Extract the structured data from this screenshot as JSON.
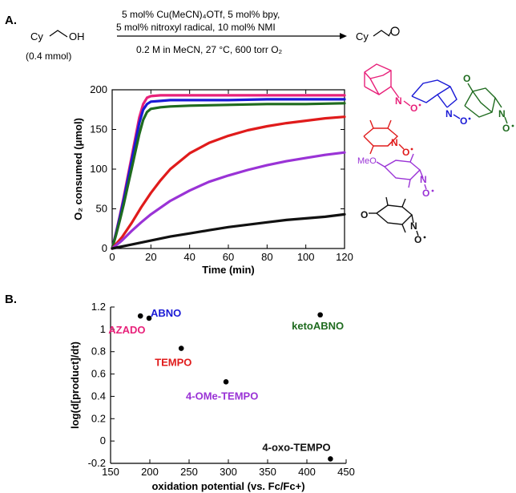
{
  "panel_a": {
    "label": "A.",
    "reactant": "Cy",
    "reactant_group": "OH",
    "reactant_amount": "(0.4 mmol)",
    "conditions_line1": "5 mol% Cu(MeCN)₄OTf, 5 mol% bpy,",
    "conditions_line2": "5 mol% nitroxyl radical, 10 mol% NMI",
    "conditions_line3": "0.2 M in MeCN, 27 °C, 600 torr O₂",
    "product": "Cy",
    "structure_labels": {
      "n": "N",
      "o": "O",
      "meo": "MeO",
      "keto_o": "O",
      "oxo_o": "O"
    }
  },
  "panel_b": {
    "label": "B."
  },
  "colors": {
    "AZADO": "#e8217a",
    "ABNO": "#1a1ad6",
    "ketoABNO": "#1f6b1f",
    "TEMPO": "#e01b1b",
    "4-OMe-TEMPO": "#9a33d6",
    "4-oxo-TEMPO": "#111111"
  },
  "chart_data": [
    {
      "type": "line",
      "xlabel": "Time (min)",
      "ylabel": "O₂ consumed (μmol)",
      "xlim": [
        0,
        120
      ],
      "ylim": [
        0,
        200
      ],
      "xticks": [
        0,
        20,
        40,
        60,
        80,
        100,
        120
      ],
      "yticks": [
        0,
        50,
        100,
        150,
        200
      ],
      "series": [
        {
          "key": "AZADO",
          "x": [
            0,
            2,
            4,
            6,
            8,
            10,
            12,
            14,
            16,
            18,
            20,
            25,
            30,
            40,
            60,
            80,
            100,
            120
          ],
          "values": [
            0,
            20,
            42,
            65,
            90,
            115,
            140,
            165,
            182,
            190,
            192,
            193,
            193,
            193,
            193,
            193,
            193,
            193
          ]
        },
        {
          "key": "ABNO",
          "x": [
            0,
            2,
            4,
            6,
            8,
            10,
            12,
            14,
            16,
            18,
            20,
            25,
            30,
            40,
            60,
            80,
            100,
            120
          ],
          "values": [
            0,
            19,
            40,
            62,
            86,
            110,
            134,
            158,
            175,
            182,
            185,
            186,
            187,
            187,
            187,
            188,
            188,
            188
          ]
        },
        {
          "key": "ketoABNO",
          "x": [
            0,
            2,
            4,
            6,
            8,
            10,
            12,
            14,
            16,
            18,
            20,
            25,
            30,
            40,
            60,
            80,
            100,
            120
          ],
          "values": [
            0,
            17,
            36,
            56,
            78,
            100,
            122,
            144,
            162,
            172,
            176,
            178,
            179,
            180,
            181,
            182,
            182,
            183
          ]
        },
        {
          "key": "TEMPO",
          "x": [
            0,
            5,
            10,
            15,
            20,
            25,
            30,
            40,
            50,
            60,
            70,
            80,
            90,
            100,
            110,
            120
          ],
          "values": [
            0,
            14,
            32,
            52,
            70,
            86,
            100,
            120,
            133,
            142,
            149,
            154,
            158,
            161,
            164,
            166
          ]
        },
        {
          "key": "4-OMe-TEMPO",
          "x": [
            0,
            5,
            10,
            15,
            20,
            30,
            40,
            50,
            60,
            70,
            80,
            90,
            100,
            110,
            120
          ],
          "values": [
            0,
            10,
            22,
            33,
            43,
            60,
            73,
            84,
            92,
            99,
            105,
            110,
            114,
            118,
            121
          ]
        },
        {
          "key": "4-oxo-TEMPO",
          "x": [
            0,
            10,
            20,
            30,
            40,
            50,
            60,
            70,
            80,
            90,
            100,
            110,
            120
          ],
          "values": [
            0,
            5,
            10,
            15,
            19,
            23,
            27,
            30,
            33,
            36,
            38,
            40,
            43
          ]
        }
      ]
    },
    {
      "type": "scatter",
      "xlabel": "oxidation potential (vs. Fc/Fc+)",
      "ylabel": "log(d[product]/dt)",
      "xlim": [
        150,
        450
      ],
      "ylim": [
        -0.2,
        1.2
      ],
      "xticks": [
        150,
        200,
        250,
        300,
        350,
        400,
        450
      ],
      "yticks": [
        -0.2,
        0,
        0.2,
        0.4,
        0.6,
        0.8,
        1,
        1.2
      ],
      "points": [
        {
          "label": "AZADO",
          "x": 188,
          "y": 1.12
        },
        {
          "label": "ABNO",
          "x": 199,
          "y": 1.1
        },
        {
          "label": "ketoABNO",
          "x": 417,
          "y": 1.13
        },
        {
          "label": "TEMPO",
          "x": 240,
          "y": 0.83
        },
        {
          "label": "4-OMe-TEMPO",
          "x": 297,
          "y": 0.53
        },
        {
          "label": "4-oxo-TEMPO",
          "x": 430,
          "y": -0.16
        }
      ]
    }
  ]
}
